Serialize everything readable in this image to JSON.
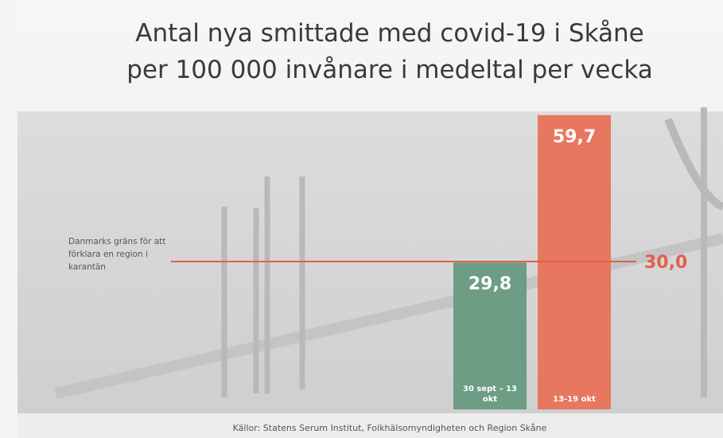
{
  "chart_data": {
    "type": "bar",
    "title": "Antal nya smittade med covid-19 i Skåne",
    "subtitle": "per 100 000 invånare i medeltal per vecka",
    "categories": [
      "30 sept – 13 okt",
      "13-19 okt"
    ],
    "values": [
      29.8,
      59.7
    ],
    "value_labels": [
      "29,8",
      "59,7"
    ],
    "colors": [
      "#6d9d84",
      "#e8775f"
    ],
    "reference_line": {
      "value": 30,
      "label": "30,0",
      "note": "Danmarks gräns för att förklara en region i karantän",
      "color": "#e2604a"
    },
    "source": "Källor: Statens Serum Institut, Folkhälsomyndigheten och Region Skåne"
  }
}
